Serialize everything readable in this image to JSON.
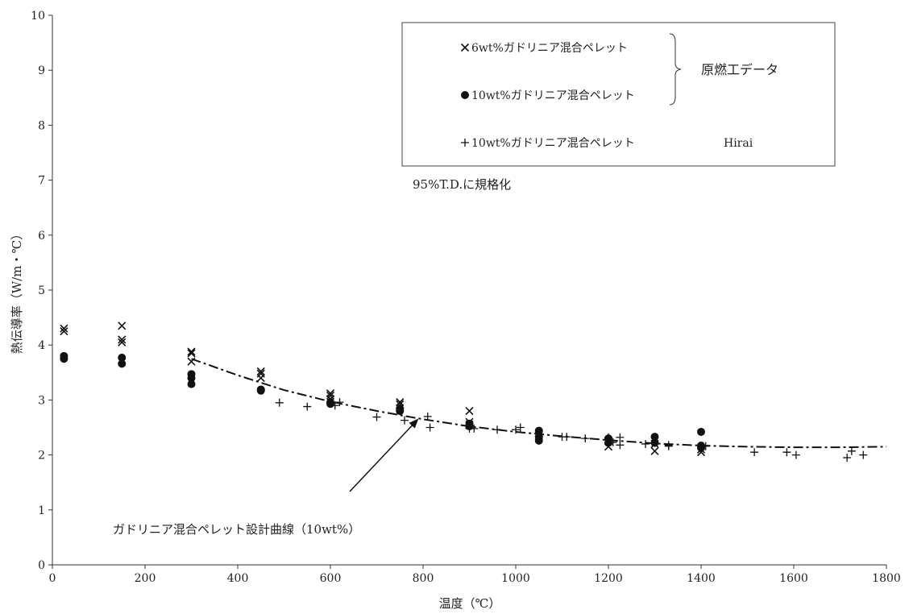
{
  "chart_data": {
    "type": "scatter",
    "xlabel": "温度（℃）",
    "ylabel": "熱伝導率（W/m・℃）",
    "xlim": [
      0,
      1800
    ],
    "ylim": [
      0,
      10
    ],
    "x_ticks": [
      "0",
      "200",
      "400",
      "600",
      "800",
      "1000",
      "1200",
      "1400",
      "1600",
      "1800"
    ],
    "y_ticks": [
      "0",
      "1",
      "2",
      "3",
      "4",
      "5",
      "6",
      "7",
      "8",
      "9",
      "10"
    ],
    "grid": false,
    "legend_position": "top-right",
    "legend": {
      "items": [
        {
          "marker": "×",
          "label": "6wt%ガドリニア混合ペレット"
        },
        {
          "marker": "●",
          "label": "10wt%ガドリニア混合ペレット"
        },
        {
          "marker": "+",
          "label": "10wt%ガドリニア混合ペレット"
        }
      ],
      "group_label": "原燃工データ",
      "hirai_label": "Hirai"
    },
    "annotations": {
      "normalization": "95%T.D.に規格化",
      "curve_label": "ガドリニア混合ペレット設計曲線（10wt%）"
    },
    "series": [
      {
        "name": "6wt%ガドリニア混合ペレット",
        "marker": "x",
        "points": [
          [
            25,
            4.3
          ],
          [
            25,
            4.25
          ],
          [
            150,
            4.35
          ],
          [
            150,
            4.1
          ],
          [
            150,
            4.05
          ],
          [
            300,
            3.88
          ],
          [
            300,
            3.85
          ],
          [
            300,
            3.7
          ],
          [
            450,
            3.52
          ],
          [
            450,
            3.48
          ],
          [
            450,
            3.4
          ],
          [
            600,
            3.12
          ],
          [
            600,
            3.08
          ],
          [
            600,
            3.02
          ],
          [
            750,
            2.96
          ],
          [
            750,
            2.92
          ],
          [
            750,
            2.85
          ],
          [
            900,
            2.8
          ],
          [
            900,
            2.6
          ],
          [
            900,
            2.55
          ],
          [
            1050,
            2.4
          ],
          [
            1050,
            2.35
          ],
          [
            1200,
            2.25
          ],
          [
            1200,
            2.15
          ],
          [
            1300,
            2.2
          ],
          [
            1300,
            2.07
          ],
          [
            1400,
            2.1
          ],
          [
            1400,
            2.05
          ]
        ]
      },
      {
        "name": "10wt%ガドリニア混合ペレット",
        "marker": "circle",
        "points": [
          [
            25,
            3.8
          ],
          [
            25,
            3.75
          ],
          [
            150,
            3.77
          ],
          [
            150,
            3.66
          ],
          [
            300,
            3.47
          ],
          [
            300,
            3.4
          ],
          [
            300,
            3.29
          ],
          [
            450,
            3.19
          ],
          [
            450,
            3.17
          ],
          [
            600,
            2.96
          ],
          [
            600,
            2.93
          ],
          [
            750,
            2.84
          ],
          [
            750,
            2.8
          ],
          [
            900,
            2.57
          ],
          [
            900,
            2.52
          ],
          [
            1050,
            2.44
          ],
          [
            1050,
            2.33
          ],
          [
            1050,
            2.26
          ],
          [
            1200,
            2.3
          ],
          [
            1200,
            2.22
          ],
          [
            1300,
            2.33
          ],
          [
            1300,
            2.22
          ],
          [
            1400,
            2.42
          ],
          [
            1400,
            2.17
          ],
          [
            1400,
            2.13
          ]
        ]
      },
      {
        "name": "10wt%ガドリニア混合ペレット (Hirai)",
        "marker": "plus",
        "points": [
          [
            490,
            2.95
          ],
          [
            550,
            2.88
          ],
          [
            610,
            2.9
          ],
          [
            620,
            2.96
          ],
          [
            700,
            2.69
          ],
          [
            760,
            2.63
          ],
          [
            810,
            2.7
          ],
          [
            815,
            2.5
          ],
          [
            900,
            2.48
          ],
          [
            910,
            2.48
          ],
          [
            960,
            2.46
          ],
          [
            1000,
            2.46
          ],
          [
            1010,
            2.5
          ],
          [
            1100,
            2.33
          ],
          [
            1110,
            2.33
          ],
          [
            1150,
            2.3
          ],
          [
            1200,
            2.32
          ],
          [
            1210,
            2.23
          ],
          [
            1225,
            2.18
          ],
          [
            1225,
            2.32
          ],
          [
            1280,
            2.2
          ],
          [
            1330,
            2.16
          ],
          [
            1330,
            2.18
          ],
          [
            1410,
            2.16
          ],
          [
            1515,
            2.05
          ],
          [
            1585,
            2.05
          ],
          [
            1605,
            2.0
          ],
          [
            1715,
            1.95
          ],
          [
            1725,
            2.07
          ],
          [
            1750,
            2.0
          ]
        ]
      },
      {
        "name": "ガドリニア混合ペレット設計曲線（10wt%）",
        "marker": "dashdot-line",
        "points": [
          [
            300,
            3.75
          ],
          [
            400,
            3.45
          ],
          [
            500,
            3.18
          ],
          [
            600,
            2.97
          ],
          [
            700,
            2.8
          ],
          [
            800,
            2.65
          ],
          [
            900,
            2.52
          ],
          [
            1000,
            2.42
          ],
          [
            1100,
            2.34
          ],
          [
            1200,
            2.27
          ],
          [
            1300,
            2.21
          ],
          [
            1400,
            2.17
          ],
          [
            1500,
            2.15
          ],
          [
            1600,
            2.14
          ],
          [
            1700,
            2.14
          ],
          [
            1800,
            2.15
          ]
        ]
      }
    ]
  }
}
